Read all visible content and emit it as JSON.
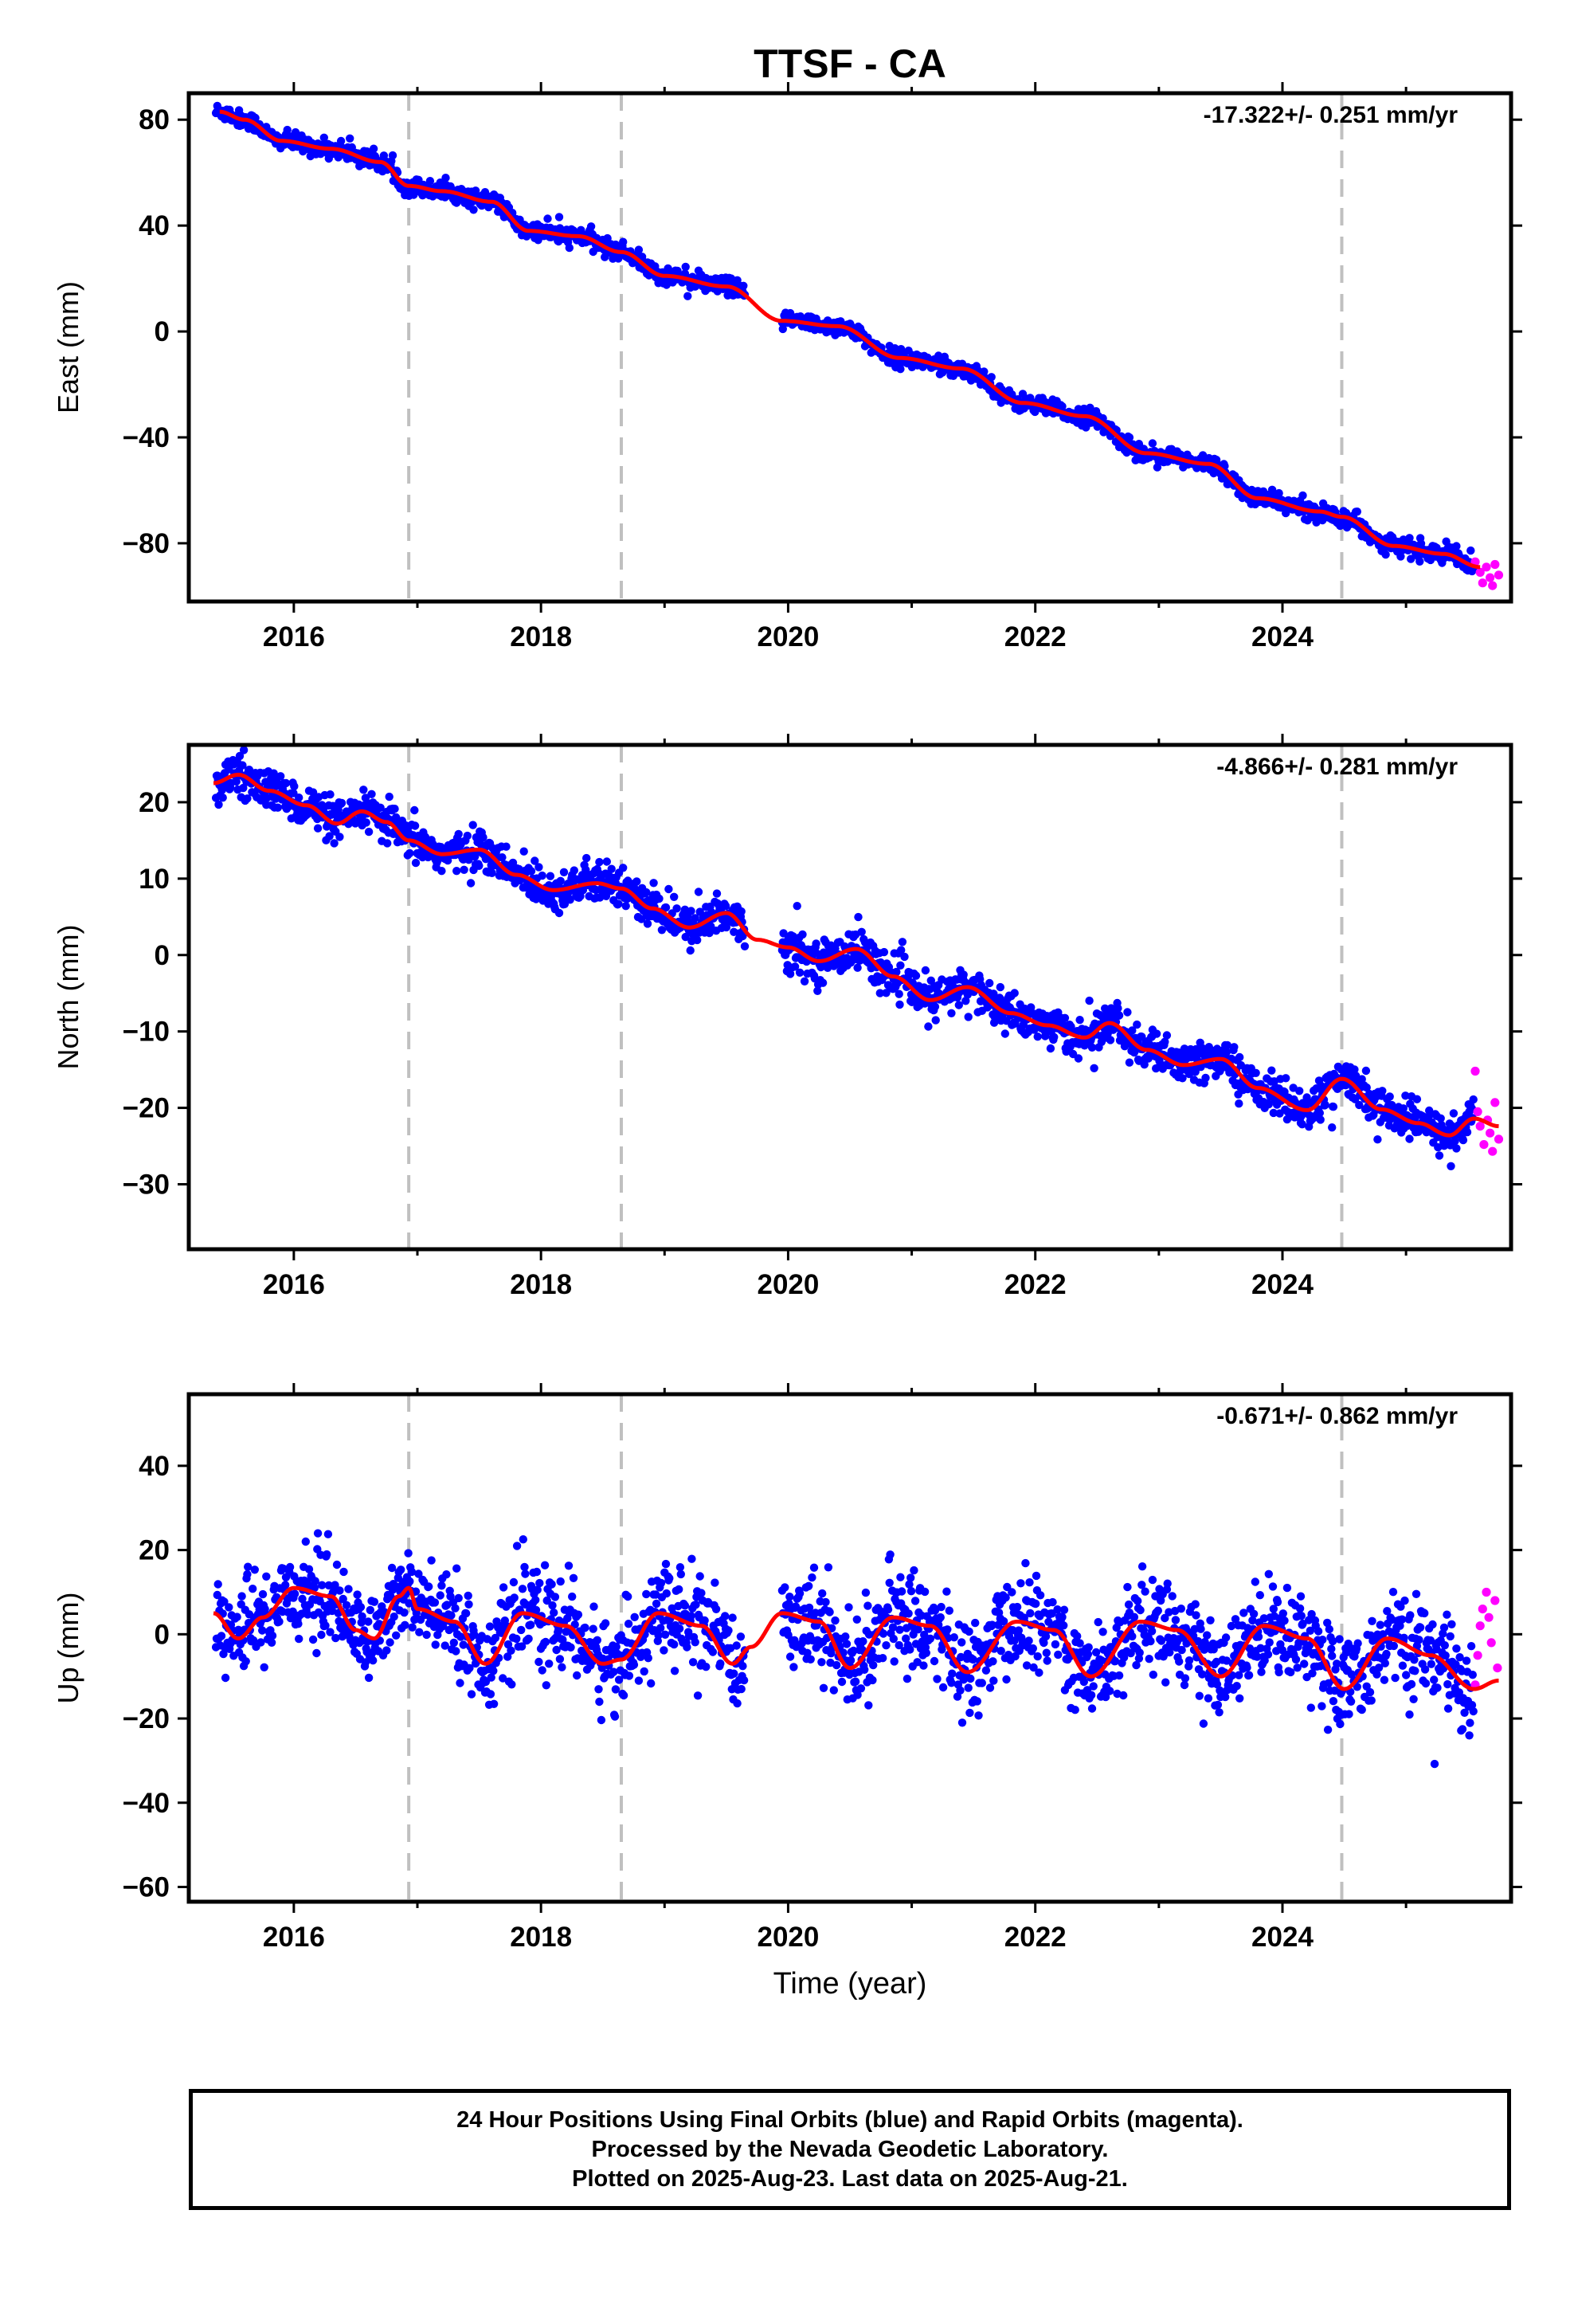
{
  "colors": {
    "final_points": "#0000ff",
    "rapid_points": "#ff00ff",
    "trend": "#ff0000",
    "event_lines": "#c0c0c0",
    "frame": "#000000"
  },
  "chart_data": {
    "type": "scatter",
    "title": "TTSF - CA",
    "xlabel": "Time (year)",
    "xlim": [
      2015.15,
      2025.85
    ],
    "x_ticks": [
      2016,
      2018,
      2020,
      2022,
      2024
    ],
    "event_lines": [
      2016.93,
      2018.65,
      2024.48
    ],
    "data_gap": [
      2019.65,
      2019.95
    ],
    "rapid_start": 2025.55,
    "panels": [
      {
        "ylabel": "East (mm)",
        "rate_text": "-17.322+/- 0.251 mm/yr",
        "ylim": [
          -102,
          90
        ],
        "y_ticks": [
          80,
          40,
          0,
          -40,
          -80
        ],
        "noise": 1.6,
        "trend": [
          [
            2015.4,
            83
          ],
          [
            2015.6,
            80
          ],
          [
            2015.9,
            72
          ],
          [
            2016.3,
            69
          ],
          [
            2016.7,
            64
          ],
          [
            2016.93,
            55
          ],
          [
            2017.2,
            53
          ],
          [
            2017.6,
            49
          ],
          [
            2017.9,
            38
          ],
          [
            2018.3,
            36
          ],
          [
            2018.65,
            30
          ],
          [
            2019.0,
            21
          ],
          [
            2019.5,
            17
          ],
          [
            2019.95,
            4
          ],
          [
            2020.4,
            2
          ],
          [
            2020.9,
            -10
          ],
          [
            2021.4,
            -14
          ],
          [
            2021.9,
            -27
          ],
          [
            2022.4,
            -32
          ],
          [
            2022.9,
            -46
          ],
          [
            2023.4,
            -50
          ],
          [
            2023.8,
            -63
          ],
          [
            2024.3,
            -68
          ],
          [
            2024.48,
            -70
          ],
          [
            2024.9,
            -81
          ],
          [
            2025.3,
            -84
          ],
          [
            2025.6,
            -89
          ]
        ],
        "rapid_points": [
          [
            2025.56,
            -87
          ],
          [
            2025.6,
            -91
          ],
          [
            2025.62,
            -95
          ],
          [
            2025.65,
            -89
          ],
          [
            2025.68,
            -93
          ],
          [
            2025.7,
            -96
          ],
          [
            2025.72,
            -88
          ],
          [
            2025.75,
            -92
          ]
        ]
      },
      {
        "ylabel": "North (mm)",
        "rate_text": "-4.866+/- 0.281 mm/yr",
        "ylim": [
          -38.5,
          27.5
        ],
        "y_ticks": [
          20,
          10,
          0,
          -10,
          -20,
          -30
        ],
        "noise": 1.3,
        "trend": [
          [
            2015.35,
            22.5
          ],
          [
            2015.55,
            23.6
          ],
          [
            2015.8,
            21.5
          ],
          [
            2016.1,
            19.6
          ],
          [
            2016.35,
            17.2
          ],
          [
            2016.55,
            18.8
          ],
          [
            2016.75,
            17.4
          ],
          [
            2016.93,
            15
          ],
          [
            2017.2,
            13.2
          ],
          [
            2017.5,
            13.8
          ],
          [
            2017.8,
            10.5
          ],
          [
            2018.1,
            8.5
          ],
          [
            2018.45,
            9.4
          ],
          [
            2018.65,
            8.7
          ],
          [
            2018.9,
            6.1
          ],
          [
            2019.2,
            3.6
          ],
          [
            2019.5,
            5.5
          ],
          [
            2019.75,
            2.0
          ],
          [
            2020.0,
            1.0
          ],
          [
            2020.25,
            -0.8
          ],
          [
            2020.55,
            0.8
          ],
          [
            2020.85,
            -2.8
          ],
          [
            2021.15,
            -5.9
          ],
          [
            2021.45,
            -4.2
          ],
          [
            2021.8,
            -7.6
          ],
          [
            2022.1,
            -9.2
          ],
          [
            2022.4,
            -10.8
          ],
          [
            2022.6,
            -8.9
          ],
          [
            2022.9,
            -12.4
          ],
          [
            2023.2,
            -14.4
          ],
          [
            2023.5,
            -13.6
          ],
          [
            2023.8,
            -17.4
          ],
          [
            2024.2,
            -20.3
          ],
          [
            2024.48,
            -16.2
          ],
          [
            2024.8,
            -20.2
          ],
          [
            2025.1,
            -22.0
          ],
          [
            2025.35,
            -23.6
          ],
          [
            2025.55,
            -21.4
          ],
          [
            2025.75,
            -22.4
          ]
        ],
        "rapid_points": [
          [
            2025.56,
            -15.2
          ],
          [
            2025.58,
            -20.5
          ],
          [
            2025.6,
            -22.4
          ],
          [
            2025.63,
            -24.8
          ],
          [
            2025.66,
            -21.6
          ],
          [
            2025.68,
            -23.3
          ],
          [
            2025.7,
            -25.7
          ],
          [
            2025.72,
            -19.3
          ],
          [
            2025.75,
            -24.1
          ]
        ]
      },
      {
        "ylabel": "Up (mm)",
        "rate_text": "-0.671+/- 0.862 mm/yr",
        "ylim": [
          -63.5,
          57
        ],
        "y_ticks": [
          40,
          20,
          0,
          -20,
          -40,
          -60
        ],
        "noise": 5.5,
        "trend": [
          [
            2015.35,
            5
          ],
          [
            2015.55,
            -1
          ],
          [
            2015.75,
            4
          ],
          [
            2016.0,
            11
          ],
          [
            2016.3,
            9
          ],
          [
            2016.5,
            1
          ],
          [
            2016.65,
            -1
          ],
          [
            2016.85,
            9
          ],
          [
            2016.93,
            11
          ],
          [
            2017.0,
            6
          ],
          [
            2017.3,
            3
          ],
          [
            2017.55,
            -7
          ],
          [
            2017.85,
            5
          ],
          [
            2018.2,
            2
          ],
          [
            2018.5,
            -7
          ],
          [
            2018.65,
            -6
          ],
          [
            2018.95,
            5
          ],
          [
            2019.3,
            2
          ],
          [
            2019.55,
            -7
          ],
          [
            2019.7,
            -3
          ],
          [
            2019.95,
            5
          ],
          [
            2020.25,
            3
          ],
          [
            2020.5,
            -8
          ],
          [
            2020.85,
            4
          ],
          [
            2021.15,
            2
          ],
          [
            2021.45,
            -9
          ],
          [
            2021.85,
            3
          ],
          [
            2022.15,
            1
          ],
          [
            2022.45,
            -10
          ],
          [
            2022.85,
            3
          ],
          [
            2023.15,
            1
          ],
          [
            2023.5,
            -10
          ],
          [
            2023.85,
            2
          ],
          [
            2024.2,
            -1
          ],
          [
            2024.5,
            -13
          ],
          [
            2024.85,
            -1
          ],
          [
            2025.2,
            -5
          ],
          [
            2025.55,
            -13
          ],
          [
            2025.75,
            -11
          ]
        ],
        "rapid_points": [
          [
            2025.56,
            -12
          ],
          [
            2025.58,
            -5
          ],
          [
            2025.6,
            2
          ],
          [
            2025.62,
            6
          ],
          [
            2025.65,
            10
          ],
          [
            2025.67,
            4
          ],
          [
            2025.69,
            -2
          ],
          [
            2025.72,
            8
          ],
          [
            2025.74,
            -8
          ]
        ]
      }
    ]
  },
  "footer": {
    "line1": "24 Hour Positions Using Final Orbits (blue) and Rapid Orbits (magenta).",
    "line2": "Processed by the Nevada Geodetic Laboratory.",
    "line3": "Plotted on 2025-Aug-23. Last data on 2025-Aug-21."
  }
}
